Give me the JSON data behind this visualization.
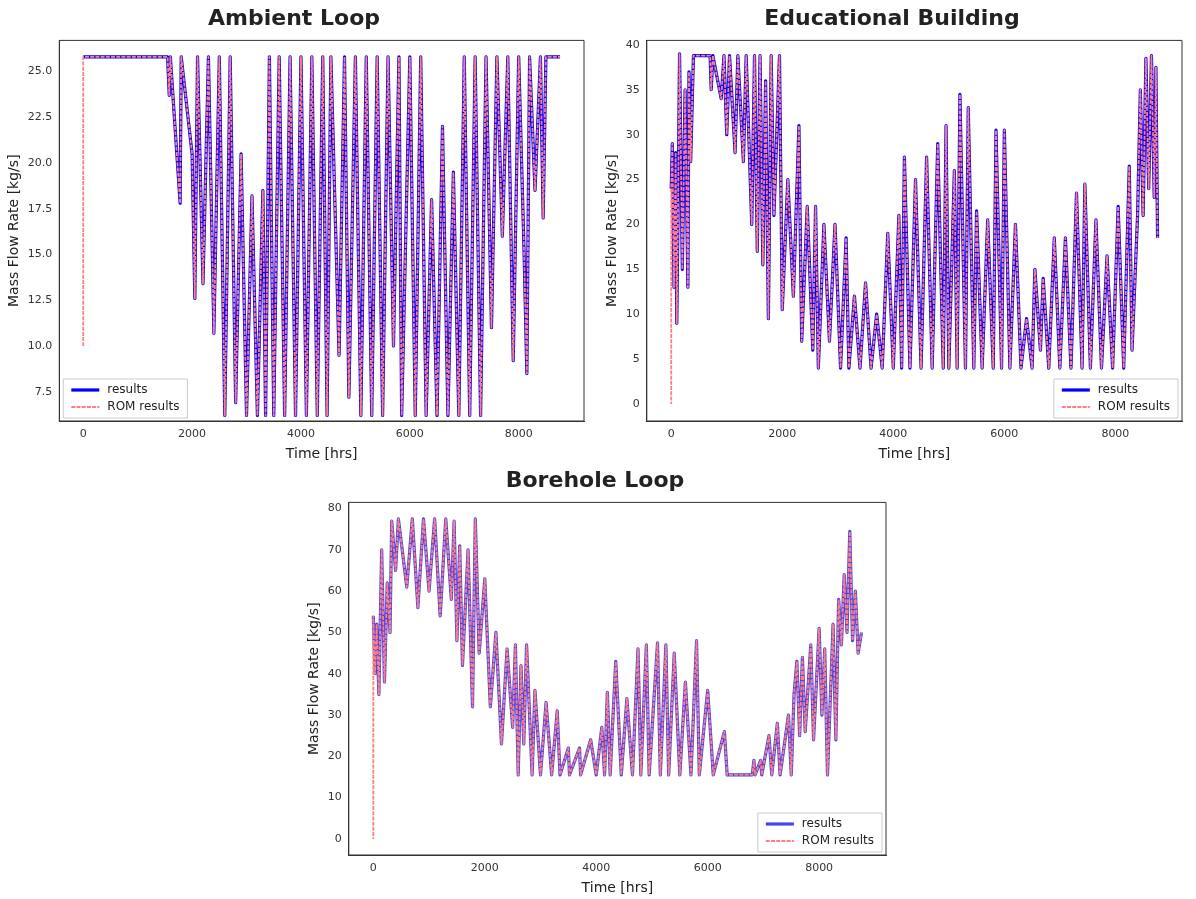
{
  "chart_data": [
    {
      "type": "line",
      "title": "Ambient Loop",
      "xlabel": "Time [hrs]",
      "ylabel": "Mass Flow Rate [kg/s]",
      "xlim": [
        -440,
        9200
      ],
      "ylim": [
        5.9,
        26.7
      ],
      "xticks": [
        0,
        2000,
        4000,
        6000,
        8000
      ],
      "yticks": [
        {
          "value": 7.5,
          "label": "7.5"
        },
        {
          "value": 10,
          "label": "10.0"
        },
        {
          "value": 12.5,
          "label": "12.5"
        },
        {
          "value": 15,
          "label": "15.0"
        },
        {
          "value": 17.5,
          "label": "17.5"
        },
        {
          "value": 20,
          "label": "20.0"
        },
        {
          "value": 22.5,
          "label": "22.5"
        },
        {
          "value": 25,
          "label": "25.0"
        }
      ],
      "legend": "bottom left",
      "series": [
        {
          "name": "results",
          "color": "#0000ff",
          "line_style": "solid",
          "x": [
            0,
            1550,
            1580,
            1600,
            1780,
            1800,
            2000,
            2050,
            2100,
            2200,
            2300,
            2400,
            2500,
            2600,
            2700,
            2800,
            2900,
            3000,
            3100,
            3200,
            3300,
            3350,
            3420,
            3500,
            3600,
            3700,
            3800,
            3900,
            4000,
            4100,
            4200,
            4300,
            4400,
            4480,
            4550,
            4700,
            4800,
            4880,
            5000,
            5100,
            5200,
            5300,
            5400,
            5500,
            5600,
            5700,
            5800,
            5850,
            6000,
            6100,
            6200,
            6300,
            6400,
            6500,
            6600,
            6700,
            6800,
            6900,
            7000,
            7100,
            7200,
            7300,
            7400,
            7500,
            7600,
            7700,
            7800,
            7900,
            8000,
            8100,
            8150,
            8200,
            8300,
            8400,
            8450,
            8500,
            8760
          ],
          "values": [
            25.8,
            25.8,
            23.7,
            25.8,
            17.8,
            25.8,
            20.5,
            12.6,
            25.8,
            13.4,
            25.8,
            10.7,
            25.8,
            6.2,
            25.8,
            6.9,
            20.5,
            6.2,
            18.2,
            6.2,
            18.5,
            6.2,
            25.8,
            6.2,
            25.8,
            6.2,
            25.8,
            6.2,
            25.8,
            6.2,
            25.8,
            6.2,
            25.8,
            6.2,
            25.8,
            9.5,
            25.8,
            7.2,
            25.8,
            6.2,
            25.8,
            6.2,
            25.8,
            6.2,
            25.8,
            10,
            25.8,
            6.2,
            25.8,
            6.2,
            25.8,
            6.2,
            18,
            6.2,
            22,
            6.2,
            19.5,
            6.2,
            25.8,
            6.2,
            25.8,
            6.2,
            25.8,
            11,
            25.8,
            16,
            25.8,
            9.2,
            25.8,
            15,
            8.5,
            25.8,
            18.5,
            25.8,
            17,
            25.8,
            25.8
          ]
        },
        {
          "name": "ROM results",
          "color": "#ff7f7f",
          "line_style": "dashed",
          "x": [
            0,
            0,
            1550,
            1580,
            1600,
            1780,
            1800,
            2000,
            2050,
            2100,
            2200,
            2300,
            2400,
            2500,
            2600,
            2700,
            2800,
            2900,
            3000,
            3100,
            3200,
            3300,
            3350,
            3420,
            3500,
            3600,
            3700,
            3800,
            3900,
            4000,
            4100,
            4200,
            4300,
            4400,
            4480,
            4550,
            4700,
            4800,
            4880,
            5000,
            5100,
            5200,
            5300,
            5400,
            5500,
            5600,
            5700,
            5800,
            5850,
            6000,
            6100,
            6200,
            6300,
            6400,
            6500,
            6600,
            6700,
            6800,
            6900,
            7000,
            7100,
            7200,
            7300,
            7400,
            7500,
            7600,
            7700,
            7800,
            7900,
            8000,
            8100,
            8150,
            8200,
            8300,
            8400,
            8450,
            8500,
            8760
          ],
          "values": [
            10,
            25.8,
            25.8,
            23.7,
            25.8,
            17.8,
            25.8,
            20.5,
            12.6,
            25.8,
            13.4,
            25.8,
            10.7,
            25.8,
            6.2,
            25.8,
            6.9,
            20.5,
            6.2,
            18.2,
            6.2,
            18.5,
            6.2,
            25.8,
            6.2,
            25.8,
            6.2,
            25.8,
            6.2,
            25.8,
            6.2,
            25.8,
            6.2,
            25.8,
            6.2,
            25.8,
            9.5,
            25.8,
            7.2,
            25.8,
            6.2,
            25.8,
            6.2,
            25.8,
            6.2,
            25.8,
            10,
            25.8,
            6.2,
            25.8,
            6.2,
            25.8,
            6.2,
            18,
            6.2,
            22,
            6.2,
            19.5,
            6.2,
            25.8,
            6.2,
            25.8,
            6.2,
            25.8,
            11,
            25.8,
            16,
            25.8,
            9.2,
            25.8,
            15,
            8.5,
            25.8,
            18.5,
            25.8,
            17,
            25.8,
            25.8
          ]
        }
      ]
    },
    {
      "type": "line",
      "title": "Educational Building",
      "xlabel": "Time [hrs]",
      "ylabel": "Mass Flow Rate [kg/s]",
      "xlim": [
        -440,
        9200
      ],
      "ylim": [
        -1.9,
        40.5
      ],
      "xticks": [
        0,
        2000,
        4000,
        6000,
        8000
      ],
      "yticks": [
        0,
        5,
        10,
        15,
        20,
        25,
        30,
        35,
        40
      ],
      "legend": "bottom right",
      "series": [
        {
          "name": "results",
          "color": "#0000ff",
          "line_style": "solid",
          "x": [
            0,
            20,
            50,
            80,
            100,
            120,
            150,
            200,
            250,
            300,
            320,
            350,
            400,
            700,
            720,
            750,
            900,
            950,
            1000,
            1050,
            1150,
            1200,
            1300,
            1350,
            1450,
            1500,
            1550,
            1600,
            1650,
            1700,
            1750,
            1800,
            1850,
            1950,
            2000,
            2100,
            2200,
            2300,
            2350,
            2450,
            2550,
            2600,
            2650,
            2750,
            2850,
            2950,
            3050,
            3150,
            3200,
            3300,
            3400,
            3500,
            3600,
            3700,
            3800,
            3900,
            4000,
            4100,
            4150,
            4200,
            4300,
            4400,
            4500,
            4600,
            4700,
            4800,
            4900,
            4950,
            5000,
            5100,
            5150,
            5200,
            5300,
            5350,
            5450,
            5500,
            5600,
            5700,
            5800,
            5850,
            5950,
            6000,
            6100,
            6200,
            6300,
            6400,
            6500,
            6550,
            6650,
            6700,
            6800,
            6900,
            7000,
            7100,
            7200,
            7300,
            7400,
            7450,
            7550,
            7650,
            7750,
            7850,
            7950,
            8050,
            8150,
            8250,
            8300,
            8400,
            8450,
            8500,
            8550,
            8600,
            8650,
            8700,
            8730,
            8760
          ],
          "values": [
            24,
            29,
            13,
            28,
            9,
            20,
            39,
            15,
            35,
            13,
            37,
            27,
            38.8,
            38.8,
            35,
            38.8,
            34,
            38.8,
            30,
            38.8,
            28,
            38.8,
            27,
            38.8,
            20,
            38.8,
            17,
            38.8,
            15.5,
            36,
            9.5,
            38.8,
            21,
            38.8,
            10.5,
            25,
            12,
            31,
            7,
            22,
            6,
            22,
            4,
            20,
            7,
            20,
            4,
            18.5,
            4,
            12,
            4,
            13.5,
            4,
            10,
            4,
            19,
            4,
            21,
            4,
            27.5,
            4,
            25,
            4,
            27.5,
            4,
            29,
            4,
            31,
            4,
            26,
            4,
            34.5,
            4,
            33,
            4,
            21.5,
            4,
            20.5,
            4,
            30.5,
            4,
            30.5,
            4,
            20,
            4,
            9.5,
            4,
            15,
            6,
            14,
            4,
            18.5,
            4,
            18.5,
            4,
            23.5,
            4,
            24.5,
            4,
            20.5,
            4,
            16.5,
            4,
            22,
            4,
            26.5,
            6,
            21,
            35,
            21,
            38.5,
            24,
            38.8,
            23,
            37.5,
            18.5
          ]
        },
        {
          "name": "ROM results",
          "color": "#ff7f7f",
          "line_style": "dashed",
          "x": [
            0,
            0,
            20,
            50,
            80,
            100,
            120,
            150,
            200,
            250,
            300,
            320,
            350,
            400,
            700,
            720,
            750,
            900,
            950,
            1000,
            1050,
            1150,
            1200,
            1300,
            1350,
            1450,
            1500,
            1550,
            1600,
            1650,
            1700,
            1750,
            1800,
            1850,
            1950,
            2000,
            2100,
            2200,
            2300,
            2350,
            2450,
            2550,
            2600,
            2650,
            2750,
            2850,
            2950,
            3050,
            3150,
            3200,
            3300,
            3400,
            3500,
            3600,
            3700,
            3800,
            3900,
            4000,
            4100,
            4150,
            4200,
            4300,
            4400,
            4500,
            4600,
            4700,
            4800,
            4900,
            4950,
            5000,
            5100,
            5150,
            5200,
            5300,
            5350,
            5450,
            5500,
            5600,
            5700,
            5800,
            5850,
            5950,
            6000,
            6100,
            6200,
            6300,
            6400,
            6500,
            6550,
            6650,
            6700,
            6800,
            6900,
            7000,
            7100,
            7200,
            7300,
            7400,
            7450,
            7550,
            7650,
            7750,
            7850,
            7950,
            8050,
            8150,
            8250,
            8300,
            8400,
            8450,
            8500,
            8550,
            8600,
            8650,
            8700,
            8730,
            8760
          ],
          "values": [
            0,
            24,
            29,
            13,
            28,
            9,
            20,
            39,
            15,
            35,
            13,
            37,
            27,
            38.8,
            38.8,
            35,
            38.8,
            34,
            38.8,
            30,
            38.8,
            28,
            38.8,
            27,
            38.8,
            20,
            38.8,
            17,
            38.8,
            15.5,
            36,
            9.5,
            38.8,
            21,
            38.8,
            10.5,
            25,
            12,
            31,
            7,
            22,
            6,
            22,
            4,
            20,
            7,
            20,
            4,
            18.5,
            4,
            12,
            4,
            13.5,
            4,
            10,
            4,
            19,
            4,
            21,
            4,
            27.5,
            4,
            25,
            4,
            27.5,
            4,
            29,
            4,
            31,
            4,
            26,
            4,
            34.5,
            4,
            33,
            4,
            21.5,
            4,
            20.5,
            4,
            30.5,
            4,
            30.5,
            4,
            20,
            4,
            9.5,
            4,
            15,
            6,
            14,
            4,
            18.5,
            4,
            18.5,
            4,
            23.5,
            4,
            24.5,
            4,
            20.5,
            4,
            16.5,
            4,
            22,
            4,
            26.5,
            6,
            21,
            35,
            21,
            38.5,
            24,
            38.8,
            23,
            37.5,
            18.5
          ]
        }
      ]
    },
    {
      "type": "line",
      "title": "Borehole Loop",
      "xlabel": "Time [hrs]",
      "ylabel": "Mass Flow Rate [kg/s]",
      "xlim": [
        -440,
        9200
      ],
      "ylim": [
        -3.9,
        81.5
      ],
      "xticks": [
        0,
        2000,
        4000,
        6000,
        8000
      ],
      "yticks": [
        0,
        10,
        20,
        30,
        40,
        50,
        60,
        70,
        80
      ],
      "legend": "bottom right",
      "series": [
        {
          "name": "results",
          "color": "#4444ee",
          "line_style": "solid",
          "x": [
            0,
            30,
            60,
            100,
            150,
            200,
            250,
            300,
            330,
            400,
            450,
            600,
            700,
            800,
            900,
            1000,
            1100,
            1200,
            1300,
            1400,
            1450,
            1500,
            1550,
            1600,
            1700,
            1780,
            1830,
            1900,
            2000,
            2100,
            2200,
            2300,
            2400,
            2500,
            2550,
            2600,
            2650,
            2700,
            2750,
            2850,
            2900,
            3000,
            3100,
            3200,
            3300,
            3350,
            3500,
            3520,
            3700,
            3720,
            3900,
            4000,
            4100,
            4150,
            4200,
            4250,
            4350,
            4450,
            4550,
            4650,
            4750,
            4800,
            4900,
            4950,
            5100,
            5150,
            5250,
            5300,
            5400,
            5500,
            5600,
            5700,
            5800,
            5850,
            6000,
            6100,
            6300,
            6350,
            6800,
            6830,
            6850,
            6950,
            6970,
            7100,
            7150,
            7250,
            7300,
            7450,
            7500,
            7550,
            7600,
            7650,
            7700,
            7750,
            7850,
            7900,
            8000,
            8050,
            8100,
            8150,
            8250,
            8300,
            8350,
            8400,
            8450,
            8500,
            8550,
            8600,
            8650,
            8700,
            8760
          ],
          "values": [
            54,
            40,
            52,
            35,
            70,
            38,
            62,
            50,
            77,
            65,
            77.5,
            61,
            77.5,
            56,
            77.5,
            60,
            77.5,
            54,
            77.5,
            58,
            77,
            48,
            71,
            42,
            70,
            32,
            77.5,
            45,
            63,
            32,
            50,
            23,
            46,
            27,
            47,
            15.5,
            42,
            23,
            47,
            15.5,
            36,
            15.5,
            33,
            15.5,
            31,
            15.5,
            22,
            15.5,
            22,
            15.5,
            24,
            15.5,
            27,
            15.5,
            35.5,
            15.5,
            43,
            15.5,
            34,
            15.5,
            46,
            15.5,
            47,
            15.5,
            47.5,
            15.5,
            47,
            15.5,
            45,
            15.5,
            38,
            15.5,
            48,
            15.5,
            36,
            15.5,
            26,
            15.5,
            15.5,
            19,
            15.5,
            19,
            15.5,
            25,
            15.5,
            28,
            15.5,
            30,
            15.5,
            35,
            43,
            25,
            44,
            26,
            47,
            24,
            51,
            30,
            46,
            15.5,
            52,
            24,
            58,
            47,
            64,
            50,
            74.5,
            48,
            60,
            45,
            50
          ]
        },
        {
          "name": "ROM results",
          "color": "#ff7f7f",
          "line_style": "dashed",
          "x": [
            0,
            0,
            30,
            60,
            100,
            150,
            200,
            250,
            300,
            330,
            400,
            450,
            600,
            700,
            800,
            900,
            1000,
            1100,
            1200,
            1300,
            1400,
            1450,
            1500,
            1550,
            1600,
            1700,
            1780,
            1830,
            1900,
            2000,
            2100,
            2200,
            2300,
            2400,
            2500,
            2550,
            2600,
            2650,
            2700,
            2750,
            2850,
            2900,
            3000,
            3100,
            3200,
            3300,
            3350,
            3500,
            3520,
            3700,
            3720,
            3900,
            4000,
            4100,
            4150,
            4200,
            4250,
            4350,
            4450,
            4550,
            4650,
            4750,
            4800,
            4900,
            4950,
            5100,
            5150,
            5250,
            5300,
            5400,
            5500,
            5600,
            5700,
            5800,
            5850,
            6000,
            6100,
            6300,
            6350,
            6800,
            6830,
            6850,
            6950,
            6970,
            7100,
            7150,
            7250,
            7300,
            7450,
            7500,
            7550,
            7600,
            7650,
            7700,
            7750,
            7850,
            7900,
            8000,
            8050,
            8100,
            8150,
            8250,
            8300,
            8350,
            8400,
            8450,
            8500,
            8550,
            8600,
            8650,
            8700,
            8760
          ],
          "values": [
            0,
            54,
            40,
            52,
            35,
            70,
            38,
            62,
            50,
            77,
            65,
            77.5,
            61,
            77.5,
            56,
            77.5,
            60,
            77.5,
            54,
            77.5,
            58,
            77,
            48,
            71,
            42,
            70,
            32,
            77.5,
            45,
            63,
            32,
            50,
            23,
            46,
            27,
            47,
            15.5,
            42,
            23,
            47,
            15.5,
            36,
            15.5,
            33,
            15.5,
            31,
            15.5,
            22,
            15.5,
            22,
            15.5,
            24,
            15.5,
            27,
            15.5,
            35.5,
            15.5,
            43,
            15.5,
            34,
            15.5,
            46,
            15.5,
            47,
            15.5,
            47.5,
            15.5,
            47,
            15.5,
            45,
            15.5,
            38,
            15.5,
            48,
            15.5,
            36,
            15.5,
            26,
            15.5,
            15.5,
            19,
            15.5,
            19,
            15.5,
            25,
            15.5,
            28,
            15.5,
            30,
            15.5,
            35,
            43,
            25,
            44,
            26,
            47,
            24,
            51,
            30,
            46,
            15.5,
            52,
            24,
            58,
            47,
            64,
            50,
            74.5,
            48,
            60,
            45,
            50
          ]
        }
      ]
    }
  ]
}
